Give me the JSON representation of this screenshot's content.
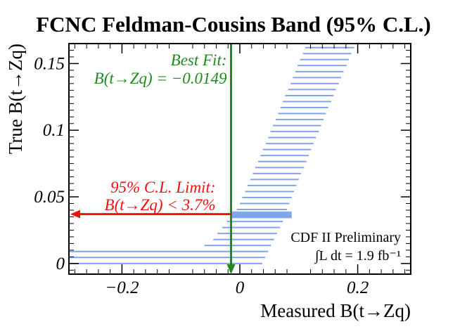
{
  "chart_data": {
    "type": "bar",
    "title": "FCNC Feldman-Cousins Band (95% C.L.)",
    "xlabel": "Measured B(t→Zq)",
    "ylabel": "True B(t→Zq)",
    "xlim": [
      -0.29,
      0.29
    ],
    "ylim": [
      -0.008,
      0.165
    ],
    "x_ticks": [
      {
        "value": -0.2,
        "label": "−0.2"
      },
      {
        "value": 0,
        "label": "0"
      },
      {
        "value": 0.2,
        "label": "0.2"
      }
    ],
    "y_ticks": [
      {
        "value": 0,
        "label": "0"
      },
      {
        "value": 0.05,
        "label": "0.05"
      },
      {
        "value": 0.1,
        "label": "0.1"
      },
      {
        "value": 0.15,
        "label": "0.15"
      }
    ],
    "band_color": "#7fa4ec",
    "bands": [
      {
        "y": 0.0,
        "lo": -0.29,
        "hi": 0.038
      },
      {
        "y": 0.0045,
        "lo": -0.29,
        "hi": 0.043
      },
      {
        "y": 0.009,
        "lo": -0.29,
        "hi": 0.048
      },
      {
        "y": 0.0135,
        "lo": -0.06,
        "hi": 0.053
      },
      {
        "y": 0.018,
        "lo": -0.045,
        "hi": 0.058
      },
      {
        "y": 0.0225,
        "lo": -0.038,
        "hi": 0.063
      },
      {
        "y": 0.027,
        "lo": -0.03,
        "hi": 0.068
      },
      {
        "y": 0.0315,
        "lo": -0.022,
        "hi": 0.073
      },
      {
        "y": 0.0345,
        "lo": -0.015,
        "hi": 0.088
      },
      {
        "y": 0.0355,
        "lo": -0.015,
        "hi": 0.088
      },
      {
        "y": 0.0365,
        "lo": -0.015,
        "hi": 0.088
      },
      {
        "y": 0.0375,
        "lo": -0.015,
        "hi": 0.088
      },
      {
        "y": 0.0385,
        "lo": -0.015,
        "hi": 0.088
      },
      {
        "y": 0.0405,
        "lo": -0.005,
        "hi": 0.08
      },
      {
        "y": 0.045,
        "lo": 0.0,
        "hi": 0.084
      },
      {
        "y": 0.0495,
        "lo": 0.004,
        "hi": 0.088
      },
      {
        "y": 0.054,
        "lo": 0.009,
        "hi": 0.092
      },
      {
        "y": 0.0585,
        "lo": 0.013,
        "hi": 0.096
      },
      {
        "y": 0.063,
        "lo": 0.018,
        "hi": 0.1
      },
      {
        "y": 0.0675,
        "lo": 0.022,
        "hi": 0.104
      },
      {
        "y": 0.072,
        "lo": 0.026,
        "hi": 0.109
      },
      {
        "y": 0.0765,
        "lo": 0.031,
        "hi": 0.113
      },
      {
        "y": 0.081,
        "lo": 0.035,
        "hi": 0.117
      },
      {
        "y": 0.0855,
        "lo": 0.039,
        "hi": 0.121
      },
      {
        "y": 0.09,
        "lo": 0.044,
        "hi": 0.125
      },
      {
        "y": 0.0945,
        "lo": 0.048,
        "hi": 0.129
      },
      {
        "y": 0.099,
        "lo": 0.052,
        "hi": 0.134
      },
      {
        "y": 0.1035,
        "lo": 0.056,
        "hi": 0.138
      },
      {
        "y": 0.108,
        "lo": 0.061,
        "hi": 0.142
      },
      {
        "y": 0.1125,
        "lo": 0.065,
        "hi": 0.146
      },
      {
        "y": 0.117,
        "lo": 0.069,
        "hi": 0.15
      },
      {
        "y": 0.1215,
        "lo": 0.073,
        "hi": 0.155
      },
      {
        "y": 0.126,
        "lo": 0.077,
        "hi": 0.159
      },
      {
        "y": 0.1305,
        "lo": 0.082,
        "hi": 0.163
      },
      {
        "y": 0.135,
        "lo": 0.086,
        "hi": 0.168
      },
      {
        "y": 0.1395,
        "lo": 0.09,
        "hi": 0.172
      },
      {
        "y": 0.144,
        "lo": 0.094,
        "hi": 0.176
      },
      {
        "y": 0.1485,
        "lo": 0.098,
        "hi": 0.181
      },
      {
        "y": 0.153,
        "lo": 0.102,
        "hi": 0.185
      },
      {
        "y": 0.1575,
        "lo": 0.107,
        "hi": 0.189
      },
      {
        "y": 0.162,
        "lo": 0.111,
        "hi": 0.194
      }
    ],
    "best_fit": {
      "value": -0.0149,
      "label_line1": "Best Fit:",
      "label_line2": "B(t→Zq) = −0.0149",
      "color": "#1e8a1e"
    },
    "limit": {
      "value": 0.037,
      "label_line1": "95% C.L. Limit:",
      "label_line2": "B(t→Zq) < 3.7%",
      "color": "#ee1111"
    },
    "annotations": [
      "CDF II Preliminary",
      "∫L dt = 1.9 fb⁻¹"
    ]
  }
}
